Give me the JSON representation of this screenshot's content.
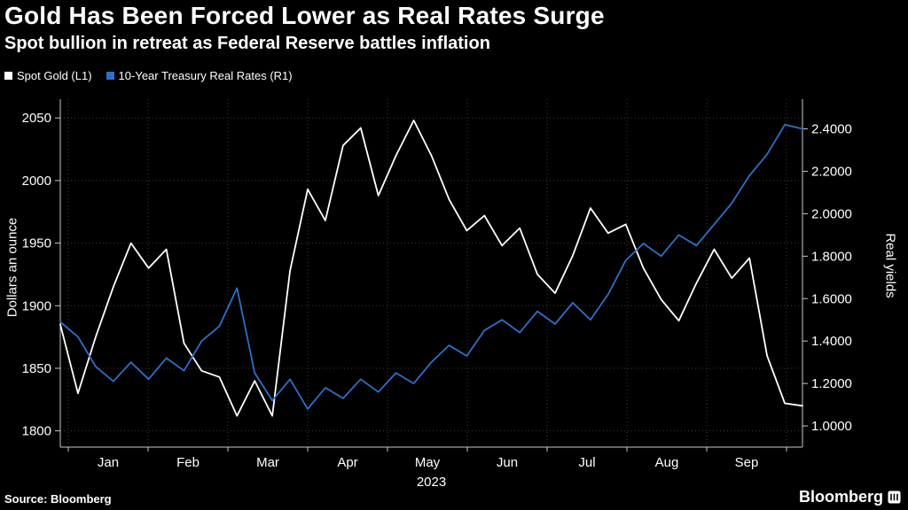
{
  "chart_data": {
    "type": "line",
    "title": "Gold Has Been Forced Lower as Real Rates Surge",
    "subtitle": "Spot bullion in retreat as Federal Reserve battles inflation",
    "source": "Source: Bloomberg",
    "brand": "Bloomberg",
    "grid": true,
    "legend_position": "top-left",
    "x_axis": {
      "year": "2023",
      "months": [
        "Jan",
        "Feb",
        "Mar",
        "Apr",
        "May",
        "Jun",
        "Jul",
        "Aug",
        "Sep"
      ],
      "domain_months": [
        -0.1,
        9.2
      ]
    },
    "axes": {
      "left": {
        "title": "Dollars an ounce",
        "range": [
          1787,
          2065
        ],
        "ticks": [
          1800,
          1850,
          1900,
          1950,
          2000,
          2050
        ],
        "tick_labels": [
          "1800",
          "1850",
          "1900",
          "1950",
          "2000",
          "2050"
        ]
      },
      "right": {
        "title": "Real yields",
        "range": [
          0.9,
          2.54
        ],
        "ticks": [
          1.0,
          1.2,
          1.4,
          1.6,
          1.8,
          2.0,
          2.2,
          2.4
        ],
        "tick_labels": [
          "1.0000",
          "1.2000",
          "1.4000",
          "1.6000",
          "1.8000",
          "2.0000",
          "2.2000",
          "2.4000"
        ]
      }
    },
    "series": [
      {
        "name": "Spot Gold (L1)",
        "axis": "left",
        "color": "#ffffff",
        "values": [
          1885,
          1830,
          1875,
          1915,
          1950,
          1930,
          1945,
          1870,
          1848,
          1843,
          1812,
          1840,
          1812,
          1928,
          1993,
          1968,
          2028,
          2042,
          1988,
          2020,
          2048,
          2020,
          1985,
          1960,
          1972,
          1948,
          1962,
          1925,
          1910,
          1940,
          1978,
          1958,
          1965,
          1930,
          1905,
          1888,
          1918,
          1945,
          1922,
          1938,
          1860,
          1822,
          1820
        ]
      },
      {
        "name": "10-Year Treasury Real Rates (R1)",
        "axis": "right",
        "color": "#2e70c9",
        "values": [
          1.49,
          1.42,
          1.28,
          1.21,
          1.3,
          1.22,
          1.32,
          1.26,
          1.4,
          1.47,
          1.65,
          1.25,
          1.12,
          1.22,
          1.08,
          1.18,
          1.13,
          1.22,
          1.16,
          1.25,
          1.2,
          1.3,
          1.38,
          1.33,
          1.45,
          1.5,
          1.44,
          1.54,
          1.48,
          1.58,
          1.5,
          1.62,
          1.78,
          1.86,
          1.8,
          1.9,
          1.85,
          1.95,
          2.05,
          2.18,
          2.28,
          2.42,
          2.4
        ]
      }
    ]
  }
}
